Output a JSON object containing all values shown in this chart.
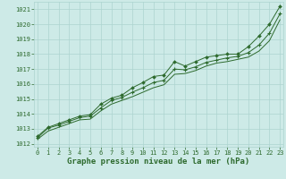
{
  "x": [
    0,
    1,
    2,
    3,
    4,
    5,
    6,
    7,
    8,
    9,
    10,
    11,
    12,
    13,
    14,
    15,
    16,
    17,
    18,
    19,
    20,
    21,
    22,
    23
  ],
  "series1": [
    1012.5,
    1013.1,
    1013.35,
    1013.6,
    1013.85,
    1013.95,
    1014.65,
    1015.05,
    1015.25,
    1015.75,
    1016.1,
    1016.5,
    1016.6,
    1017.5,
    1017.2,
    1017.5,
    1017.8,
    1017.9,
    1018.0,
    1018.0,
    1018.5,
    1019.2,
    1020.0,
    1021.2
  ],
  "series2": [
    1012.4,
    1013.05,
    1013.25,
    1013.5,
    1013.75,
    1013.85,
    1014.4,
    1014.9,
    1015.1,
    1015.45,
    1015.75,
    1016.1,
    1016.25,
    1017.0,
    1016.95,
    1017.15,
    1017.45,
    1017.6,
    1017.75,
    1017.85,
    1018.1,
    1018.6,
    1019.4,
    1020.7
  ],
  "series3": [
    1012.3,
    1012.85,
    1013.1,
    1013.35,
    1013.6,
    1013.65,
    1014.2,
    1014.65,
    1014.9,
    1015.15,
    1015.45,
    1015.75,
    1015.95,
    1016.65,
    1016.7,
    1016.9,
    1017.2,
    1017.4,
    1017.5,
    1017.65,
    1017.8,
    1018.2,
    1018.9,
    1020.3
  ],
  "line_color": "#2d6a2d",
  "marker_color": "#2d6a2d",
  "bg_color": "#cdeae7",
  "grid_color": "#add4d0",
  "title": "Graphe pression niveau de la mer (hPa)",
  "ylim_min": 1011.8,
  "ylim_max": 1021.5,
  "xlim_min": -0.3,
  "xlim_max": 23.3,
  "yticks": [
    1012,
    1013,
    1014,
    1015,
    1016,
    1017,
    1018,
    1019,
    1020,
    1021
  ],
  "xticks": [
    0,
    1,
    2,
    3,
    4,
    5,
    6,
    7,
    8,
    9,
    10,
    11,
    12,
    13,
    14,
    15,
    16,
    17,
    18,
    19,
    20,
    21,
    22,
    23
  ],
  "title_fontsize": 6.5,
  "tick_fontsize": 5.0
}
